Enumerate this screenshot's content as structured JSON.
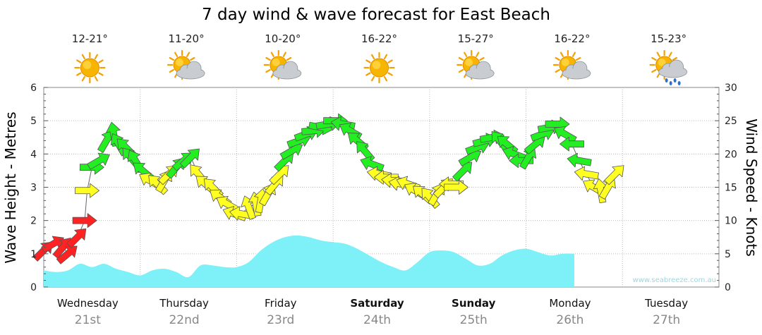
{
  "chart_data": {
    "type": "area",
    "title": "7 day wind & wave forecast for East Beach",
    "watermark": "www.seabreeze.com.au",
    "left_axis": {
      "label": "Wave Height - Metres",
      "range": [
        0,
        6
      ],
      "ticks": [
        "0",
        "1",
        "2",
        "3",
        "4",
        "5",
        "6"
      ]
    },
    "right_axis": {
      "label": "Wind Speed - Knots",
      "range": [
        0,
        30
      ],
      "ticks": [
        "0",
        "5",
        "10",
        "15",
        "20",
        "25",
        "30"
      ]
    },
    "grid": true,
    "days": [
      {
        "day": "Wednesday",
        "date": "21st",
        "temp": "12-21°",
        "weather": "sunny-icon",
        "bold": false
      },
      {
        "day": "Thursday",
        "date": "22nd",
        "temp": "11-20°",
        "weather": "partly-cloudy-icon",
        "bold": false
      },
      {
        "day": "Friday",
        "date": "23rd",
        "temp": "10-20°",
        "weather": "partly-cloudy-icon",
        "bold": false
      },
      {
        "day": "Saturday",
        "date": "24th",
        "temp": "16-22°",
        "weather": "sunny-icon",
        "bold": true
      },
      {
        "day": "Sunday",
        "date": "25th",
        "temp": "15-27°",
        "weather": "partly-cloudy-icon",
        "bold": true
      },
      {
        "day": "Monday",
        "date": "26th",
        "temp": "16-22°",
        "weather": "partly-cloudy-icon",
        "bold": false
      },
      {
        "day": "Tuesday",
        "date": "27th",
        "temp": "15-23°",
        "weather": "rain-icon",
        "bold": false
      }
    ],
    "wave_height_m": [
      [
        0.0,
        0.5
      ],
      [
        0.5,
        0.45
      ],
      [
        1.0,
        0.5
      ],
      [
        1.5,
        0.7
      ],
      [
        2.0,
        0.6
      ],
      [
        2.5,
        0.7
      ],
      [
        3.0,
        0.55
      ],
      [
        3.5,
        0.45
      ],
      [
        4.0,
        0.35
      ],
      [
        4.5,
        0.5
      ],
      [
        5.0,
        0.55
      ],
      [
        5.5,
        0.45
      ],
      [
        6.0,
        0.3
      ],
      [
        6.5,
        0.65
      ],
      [
        7.0,
        0.65
      ],
      [
        7.5,
        0.6
      ],
      [
        8.0,
        0.6
      ],
      [
        8.5,
        0.75
      ],
      [
        9.0,
        1.1
      ],
      [
        9.5,
        1.35
      ],
      [
        10.0,
        1.5
      ],
      [
        10.5,
        1.55
      ],
      [
        11.0,
        1.5
      ],
      [
        11.5,
        1.4
      ],
      [
        12.0,
        1.35
      ],
      [
        12.5,
        1.3
      ],
      [
        13.0,
        1.15
      ],
      [
        13.5,
        0.95
      ],
      [
        14.0,
        0.75
      ],
      [
        14.5,
        0.6
      ],
      [
        15.0,
        0.5
      ],
      [
        15.5,
        0.75
      ],
      [
        16.0,
        1.05
      ],
      [
        16.5,
        1.1
      ],
      [
        17.0,
        1.05
      ],
      [
        17.5,
        0.85
      ],
      [
        18.0,
        0.65
      ],
      [
        18.5,
        0.7
      ],
      [
        19.0,
        0.95
      ],
      [
        19.5,
        1.1
      ],
      [
        20.0,
        1.15
      ],
      [
        20.5,
        1.05
      ],
      [
        21.0,
        0.95
      ],
      [
        21.5,
        1.0
      ],
      [
        22.0,
        1.0
      ]
    ],
    "wind": {
      "units": "knots",
      "color_scale": [
        {
          "max_knots": 10,
          "color": "#ff2222"
        },
        {
          "max_knots": 17,
          "color": "#ffff22"
        },
        {
          "max_knots": 30,
          "color": "#22ee22"
        }
      ],
      "points": [
        [
          0.0,
          5.5,
          45
        ],
        [
          0.4,
          6.5,
          30
        ],
        [
          0.8,
          6.0,
          50
        ],
        [
          1.0,
          5.0,
          40
        ],
        [
          1.4,
          7.5,
          45
        ],
        [
          1.7,
          10.0,
          0
        ],
        [
          1.8,
          14.5,
          0
        ],
        [
          2.0,
          18.0,
          0
        ],
        [
          2.3,
          19.0,
          30
        ],
        [
          2.6,
          22.0,
          60
        ],
        [
          2.9,
          23.0,
          100
        ],
        [
          3.1,
          21.5,
          120
        ],
        [
          3.4,
          21.0,
          135
        ],
        [
          3.6,
          19.5,
          130
        ],
        [
          3.8,
          19.0,
          120
        ],
        [
          4.1,
          17.5,
          140
        ],
        [
          4.4,
          16.0,
          150
        ],
        [
          4.7,
          15.5,
          135
        ],
        [
          5.0,
          16.0,
          60
        ],
        [
          5.2,
          17.0,
          45
        ],
        [
          5.5,
          18.0,
          50
        ],
        [
          5.8,
          19.0,
          40
        ],
        [
          6.1,
          19.5,
          45
        ],
        [
          6.4,
          17.0,
          130
        ],
        [
          6.7,
          15.5,
          140
        ],
        [
          7.0,
          15.0,
          135
        ],
        [
          7.3,
          13.5,
          145
        ],
        [
          7.6,
          12.5,
          150
        ],
        [
          7.9,
          11.0,
          160
        ],
        [
          8.2,
          11.0,
          170
        ],
        [
          8.5,
          12.0,
          110
        ],
        [
          8.8,
          12.5,
          100
        ],
        [
          9.0,
          13.0,
          80
        ],
        [
          9.3,
          14.0,
          60
        ],
        [
          9.6,
          15.5,
          50
        ],
        [
          9.8,
          17.0,
          45
        ],
        [
          10.0,
          19.0,
          45
        ],
        [
          10.3,
          20.5,
          30
        ],
        [
          10.6,
          22.0,
          20
        ],
        [
          10.9,
          23.0,
          20
        ],
        [
          11.2,
          23.5,
          5
        ],
        [
          11.5,
          24.0,
          350
        ],
        [
          11.8,
          24.5,
          10
        ],
        [
          12.1,
          25.0,
          0
        ],
        [
          12.4,
          24.5,
          170
        ],
        [
          12.7,
          23.5,
          150
        ],
        [
          13.0,
          22.0,
          140
        ],
        [
          13.3,
          20.5,
          130
        ],
        [
          13.6,
          18.5,
          160
        ],
        [
          13.9,
          17.0,
          170
        ],
        [
          14.2,
          16.5,
          180
        ],
        [
          14.5,
          16.0,
          175
        ],
        [
          14.8,
          15.5,
          170
        ],
        [
          15.1,
          15.5,
          160
        ],
        [
          15.4,
          14.5,
          150
        ],
        [
          15.7,
          14.0,
          140
        ],
        [
          16.0,
          13.5,
          130
        ],
        [
          16.3,
          14.0,
          60
        ],
        [
          16.6,
          15.0,
          45
        ],
        [
          16.9,
          15.5,
          180
        ],
        [
          17.1,
          15.0,
          0
        ],
        [
          17.4,
          17.5,
          45
        ],
        [
          17.7,
          19.5,
          30
        ],
        [
          18.0,
          21.0,
          20
        ],
        [
          18.3,
          22.0,
          15
        ],
        [
          18.6,
          22.5,
          10
        ],
        [
          18.9,
          22.0,
          130
        ],
        [
          19.2,
          21.5,
          140
        ],
        [
          19.5,
          20.0,
          160
        ],
        [
          19.8,
          19.0,
          180
        ],
        [
          20.1,
          19.5,
          60
        ],
        [
          20.4,
          21.5,
          40
        ],
        [
          20.7,
          23.0,
          20
        ],
        [
          21.0,
          24.0,
          10
        ],
        [
          21.3,
          24.5,
          0
        ],
        [
          21.6,
          23.0,
          150
        ],
        [
          21.9,
          21.5,
          180
        ],
        [
          22.2,
          19.0,
          170
        ],
        [
          22.5,
          17.0,
          170
        ],
        [
          22.8,
          15.0,
          150
        ],
        [
          23.1,
          14.5,
          100
        ],
        [
          23.4,
          15.0,
          60
        ],
        [
          23.7,
          17.0,
          45
        ]
      ]
    }
  }
}
